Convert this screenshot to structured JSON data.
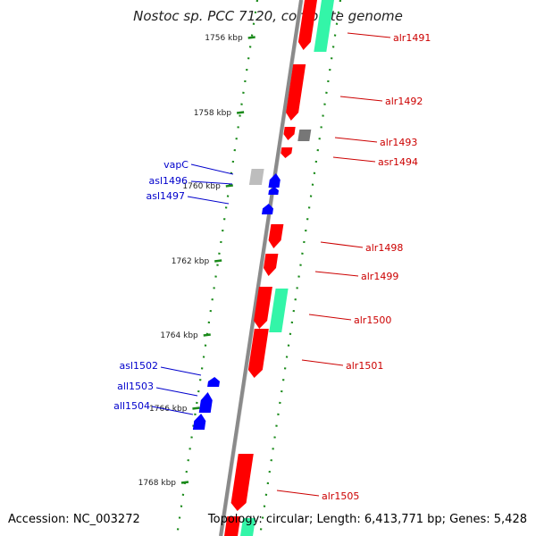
{
  "title": "Nostoc sp. PCC 7120, complete genome",
  "accession_text": "Accession: NC_003272",
  "topology_text": "Topology: circular; Length: 6,413,771 bp; Genes: 5,428",
  "colors": {
    "backbone": "#8a8a8a",
    "forward_gene": "#ff0000",
    "reverse_gene": "#0000ff",
    "rna": "#33f5a8",
    "pseudo_gray": "#777777",
    "tick": "#1a8a1a",
    "forward_label": "#cc0000",
    "reverse_label": "#0000cc",
    "tick_label": "#222222"
  },
  "ticks": [
    {
      "label": "1756 kbp"
    },
    {
      "label": "1758 kbp"
    },
    {
      "label": "1760 kbp"
    },
    {
      "label": "1762 kbp"
    },
    {
      "label": "1764 kbp"
    },
    {
      "label": "1766 kbp"
    },
    {
      "label": "1768 kbp"
    }
  ],
  "gene_labels_forward": [
    "alr1491",
    "alr1492",
    "alr1493",
    "asr1494",
    "alr1498",
    "alr1499",
    "alr1500",
    "alr1501",
    "alr1505"
  ],
  "gene_labels_reverse": [
    "vapC",
    "asl1496",
    "asl1497",
    "asl1502",
    "all1503",
    "all1504"
  ]
}
